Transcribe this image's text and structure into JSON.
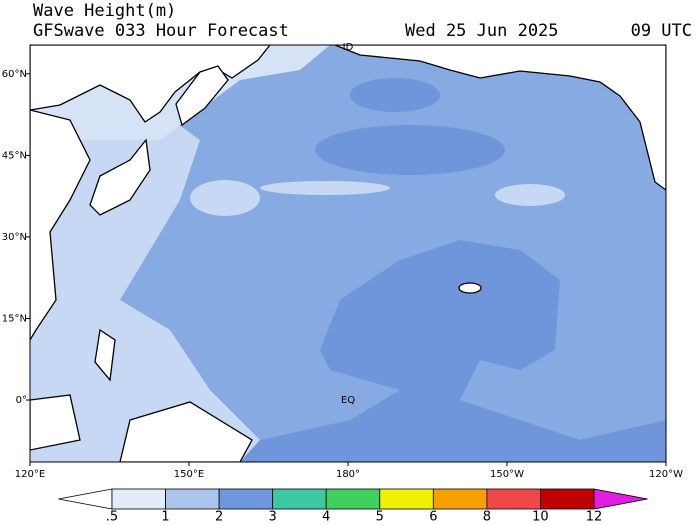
{
  "header": {
    "title": "Wave Height(m)",
    "subtitle": "GFSwave 033 Hour Forecast",
    "date": "Wed 25 Jun 2025",
    "time": "09 UTC"
  },
  "map": {
    "lonlim": [
      120,
      240
    ],
    "latlim": [
      -11.4,
      65.3
    ],
    "lonticks": [
      {
        "value": 120,
        "label": "120°E"
      },
      {
        "value": 150,
        "label": "150°E"
      },
      {
        "value": 180,
        "label": "180°"
      },
      {
        "value": 210,
        "label": "150°W"
      },
      {
        "value": 240,
        "label": "120°W"
      }
    ],
    "latticks": [
      {
        "value": 0,
        "label": "0°"
      },
      {
        "value": 15,
        "label": "15°N"
      },
      {
        "value": 30,
        "label": "30°N"
      },
      {
        "value": 45,
        "label": "45°N"
      },
      {
        "value": 60,
        "label": "60°N"
      }
    ],
    "equator_label": "EQ",
    "dateline_label": "ID"
  },
  "colorbar": {
    "levels": [
      {
        "value": 0.5,
        "label": ".5"
      },
      1,
      2,
      3,
      4,
      5,
      6,
      8,
      10,
      12
    ],
    "under_color": "#ffffff",
    "over_color": "#e020e0",
    "colors": [
      "#e3ecf9",
      "#aac4ec",
      "#6f98dc",
      "#3cc8a0",
      "#40d060",
      "#f0f000",
      "#f8a000",
      "#f04848",
      "#c00000"
    ]
  }
}
